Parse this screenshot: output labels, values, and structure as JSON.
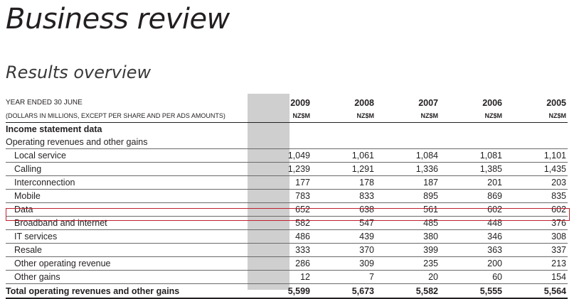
{
  "page": {
    "title": "Business review",
    "subtitle": "Results overview"
  },
  "table": {
    "header_year_label": "YEAR ENDED 30 JUNE",
    "header_units_label": "(DOLLARS IN MILLIONS, EXCEPT PER SHARE AND PER ADS AMOUNTS)",
    "years": [
      "2009",
      "2008",
      "2007",
      "2006",
      "2005"
    ],
    "currency": "NZ$M",
    "section_heading": "Income statement data",
    "subsection_heading": "Operating revenues and other gains",
    "rows": [
      {
        "label": "Local service",
        "values": [
          "1,049",
          "1,061",
          "1,084",
          "1,081",
          "1,101"
        ]
      },
      {
        "label": "Calling",
        "values": [
          "1,239",
          "1,291",
          "1,336",
          "1,385",
          "1,435"
        ]
      },
      {
        "label": "Interconnection",
        "values": [
          "177",
          "178",
          "187",
          "201",
          "203"
        ]
      },
      {
        "label": "Mobile",
        "values": [
          "783",
          "833",
          "895",
          "869",
          "835"
        ]
      },
      {
        "label": "Data",
        "values": [
          "652",
          "638",
          "561",
          "602",
          "602"
        ]
      },
      {
        "label": "Broadband and internet",
        "values": [
          "582",
          "547",
          "485",
          "448",
          "376"
        ]
      },
      {
        "label": "IT services",
        "values": [
          "486",
          "439",
          "380",
          "346",
          "308"
        ]
      },
      {
        "label": "Resale",
        "values": [
          "333",
          "370",
          "399",
          "363",
          "337"
        ]
      },
      {
        "label": "Other operating revenue",
        "values": [
          "286",
          "309",
          "235",
          "200",
          "213"
        ]
      },
      {
        "label": "Other gains",
        "values": [
          "12",
          "7",
          "20",
          "60",
          "154"
        ]
      }
    ],
    "total": {
      "label": "Total operating revenues and other gains",
      "values": [
        "5,599",
        "5,673",
        "5,582",
        "5,555",
        "5,564"
      ]
    },
    "highlight_color": "#c0202f"
  }
}
